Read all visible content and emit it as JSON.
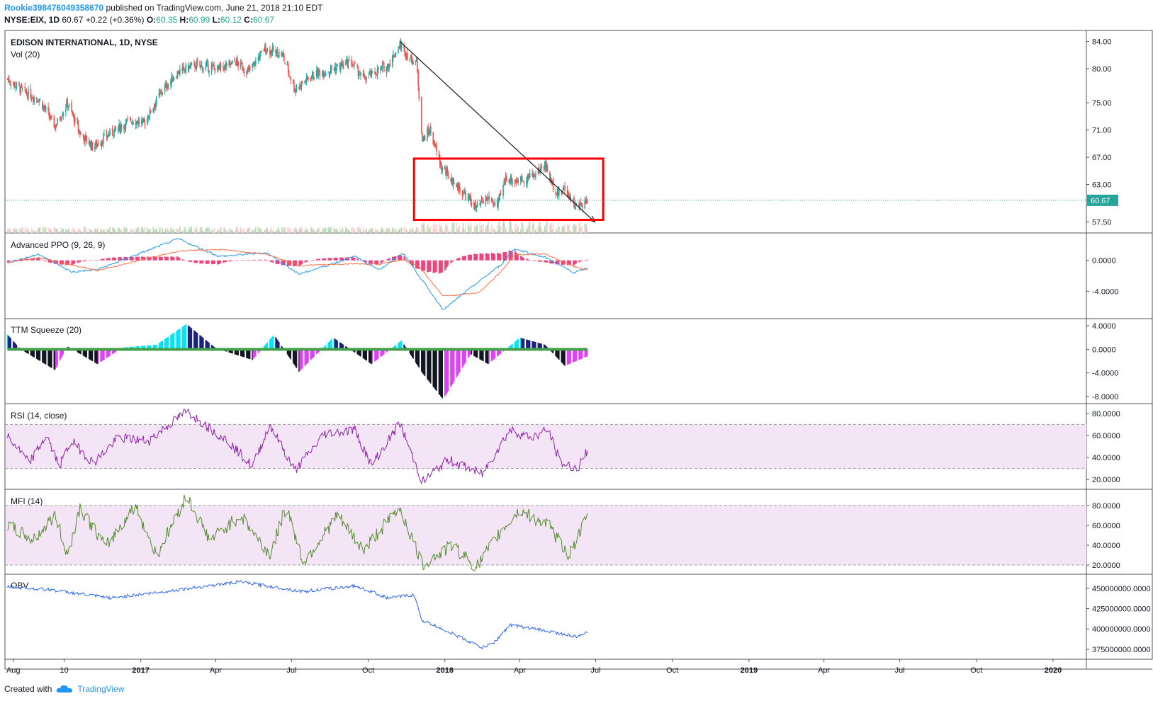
{
  "header": {
    "author": "Rookie398476049358670",
    "published": "published on TradingView.com, June 21, 2018 21:10 EDT",
    "symbol_line": {
      "symbol": "NYSE:EIX, 1D",
      "last": "60.67",
      "change": "+0.22 (+0.36%)",
      "o_label": "O:",
      "o": "60.35",
      "h_label": "H:",
      "h": "60.99",
      "l_label": "L:",
      "l": "60.12",
      "c_label": "C:",
      "c": "60.67"
    }
  },
  "footer": {
    "created_with": "Created with",
    "brand": "TradingView"
  },
  "colors": {
    "up": "#26a69a",
    "down": "#ef5350",
    "accent": "#2196f3",
    "box": "#ff0000",
    "rsi": "#8e24aa",
    "mfi": "#558b2f",
    "obv": "#2962ff",
    "band": "#f3e5f5"
  },
  "chart_data": [
    {
      "type": "candlestick",
      "title": "EDISON INTERNATIONAL, 1D, NYSE",
      "subtitle": "Vol (20)",
      "y_ticks": [
        "84.00",
        "80.00",
        "75.00",
        "71.00",
        "67.00",
        "63.00",
        "57.50"
      ],
      "last_price_label": "60.67",
      "last_price": 60.67,
      "ylim": [
        56.5,
        85
      ],
      "price_anchors": [
        {
          "date": "2016-07-25",
          "price": 78.5
        },
        {
          "date": "2016-08-15",
          "price": 76.5
        },
        {
          "date": "2016-09-01",
          "price": 75.5
        },
        {
          "date": "2016-09-20",
          "price": 71.5
        },
        {
          "date": "2016-10-05",
          "price": 75.0
        },
        {
          "date": "2016-10-20",
          "price": 70.5
        },
        {
          "date": "2016-11-05",
          "price": 68.5
        },
        {
          "date": "2016-11-25",
          "price": 70.5
        },
        {
          "date": "2016-12-20",
          "price": 72.5
        },
        {
          "date": "2017-01-05",
          "price": 72.0
        },
        {
          "date": "2017-01-25",
          "price": 76.5
        },
        {
          "date": "2017-02-15",
          "price": 79.5
        },
        {
          "date": "2017-03-05",
          "price": 80.5
        },
        {
          "date": "2017-04-05",
          "price": 80.0
        },
        {
          "date": "2017-04-25",
          "price": 81.0
        },
        {
          "date": "2017-05-10",
          "price": 79.5
        },
        {
          "date": "2017-05-30",
          "price": 83.0
        },
        {
          "date": "2017-06-20",
          "price": 82.0
        },
        {
          "date": "2017-07-05",
          "price": 77.0
        },
        {
          "date": "2017-07-25",
          "price": 79.0
        },
        {
          "date": "2017-08-20",
          "price": 80.0
        },
        {
          "date": "2017-09-10",
          "price": 81.0
        },
        {
          "date": "2017-09-25",
          "price": 78.5
        },
        {
          "date": "2017-10-10",
          "price": 79.5
        },
        {
          "date": "2017-10-25",
          "price": 80.5
        },
        {
          "date": "2017-11-08",
          "price": 83.5
        },
        {
          "date": "2017-11-20",
          "price": 81.5
        },
        {
          "date": "2017-11-28",
          "price": 81.0
        },
        {
          "date": "2017-12-05",
          "price": 69.5
        },
        {
          "date": "2017-12-14",
          "price": 71.0
        },
        {
          "date": "2017-12-20",
          "price": 68.5
        },
        {
          "date": "2017-12-28",
          "price": 65.5
        },
        {
          "date": "2018-01-10",
          "price": 63.5
        },
        {
          "date": "2018-01-25",
          "price": 61.5
        },
        {
          "date": "2018-02-08",
          "price": 59.5
        },
        {
          "date": "2018-02-22",
          "price": 61.0
        },
        {
          "date": "2018-03-05",
          "price": 59.8
        },
        {
          "date": "2018-03-15",
          "price": 64.0
        },
        {
          "date": "2018-03-28",
          "price": 63.5
        },
        {
          "date": "2018-04-10",
          "price": 64.0
        },
        {
          "date": "2018-04-20",
          "price": 64.5
        },
        {
          "date": "2018-05-01",
          "price": 66.0
        },
        {
          "date": "2018-05-10",
          "price": 63.0
        },
        {
          "date": "2018-05-18",
          "price": 61.5
        },
        {
          "date": "2018-05-25",
          "price": 62.5
        },
        {
          "date": "2018-06-08",
          "price": 59.5
        },
        {
          "date": "2018-06-21",
          "price": 60.67
        }
      ],
      "trendline": {
        "from": {
          "date": "2017-11-08",
          "price": 84.0
        },
        "to": {
          "date": "2018-06-30",
          "price": 57.5
        }
      },
      "highlight_box": {
        "from": "2017-11-25",
        "to": "2018-07-10",
        "price_high": 66.8,
        "price_low": 57.8
      }
    },
    {
      "type": "line",
      "title": "Advanced PPO (9, 26, 9)",
      "y_ticks": [
        "0.0000",
        "-4.0000"
      ],
      "ylim": [
        -7,
        3
      ],
      "anchors": [
        {
          "date": "2016-07-25",
          "value": -0.3
        },
        {
          "date": "2016-09-01",
          "value": 0.8
        },
        {
          "date": "2016-10-10",
          "value": -1.5
        },
        {
          "date": "2016-11-10",
          "value": -1.2
        },
        {
          "date": "2017-02-15",
          "value": 2.8
        },
        {
          "date": "2017-04-05",
          "value": 0.5
        },
        {
          "date": "2017-06-01",
          "value": 1.0
        },
        {
          "date": "2017-07-10",
          "value": -1.8
        },
        {
          "date": "2017-09-15",
          "value": 0.5
        },
        {
          "date": "2017-10-15",
          "value": -1.2
        },
        {
          "date": "2017-11-12",
          "value": 1.0
        },
        {
          "date": "2017-12-01",
          "value": -2.0
        },
        {
          "date": "2017-12-30",
          "value": -6.4
        },
        {
          "date": "2018-02-10",
          "value": -2.8
        },
        {
          "date": "2018-03-10",
          "value": -0.5
        },
        {
          "date": "2018-03-25",
          "value": 1.5
        },
        {
          "date": "2018-05-01",
          "value": 0.4
        },
        {
          "date": "2018-06-05",
          "value": -1.6
        },
        {
          "date": "2018-06-21",
          "value": -1.0
        }
      ]
    },
    {
      "type": "bar",
      "title": "TTM Squeeze (20)",
      "y_ticks": [
        "4.0000",
        "0.0000",
        "-4.0000",
        "-8.0000"
      ],
      "ylim": [
        -8.5,
        4.5
      ],
      "anchors": [
        {
          "date": "2016-07-25",
          "value": 2.5
        },
        {
          "date": "2016-08-10",
          "value": 0.0
        },
        {
          "date": "2016-09-20",
          "value": -3.5
        },
        {
          "date": "2016-10-05",
          "value": 0.5
        },
        {
          "date": "2016-11-10",
          "value": -2.5
        },
        {
          "date": "2016-12-10",
          "value": 0.3
        },
        {
          "date": "2017-01-20",
          "value": 0.8
        },
        {
          "date": "2017-02-25",
          "value": 4.3
        },
        {
          "date": "2017-04-01",
          "value": 0.2
        },
        {
          "date": "2017-05-15",
          "value": -1.8
        },
        {
          "date": "2017-06-10",
          "value": 2.5
        },
        {
          "date": "2017-07-10",
          "value": -3.8
        },
        {
          "date": "2017-08-20",
          "value": 2.0
        },
        {
          "date": "2017-10-05",
          "value": -2.5
        },
        {
          "date": "2017-11-10",
          "value": 1.5
        },
        {
          "date": "2017-12-05",
          "value": -4.0
        },
        {
          "date": "2017-12-30",
          "value": -8.5
        },
        {
          "date": "2018-02-01",
          "value": -0.8
        },
        {
          "date": "2018-02-22",
          "value": -2.5
        },
        {
          "date": "2018-04-01",
          "value": 2.0
        },
        {
          "date": "2018-05-01",
          "value": 0.8
        },
        {
          "date": "2018-05-25",
          "value": -2.8
        },
        {
          "date": "2018-06-21",
          "value": -1.2
        }
      ]
    },
    {
      "type": "line",
      "title": "RSI (14, close)",
      "y_ticks": [
        "80.0000",
        "60.0000",
        "40.0000",
        "20.0000"
      ],
      "ylim": [
        15,
        85
      ],
      "band": [
        30,
        70
      ],
      "anchors": [
        {
          "date": "2016-07-25",
          "value": 60
        },
        {
          "date": "2016-08-20",
          "value": 35
        },
        {
          "date": "2016-09-10",
          "value": 60
        },
        {
          "date": "2016-09-25",
          "value": 32
        },
        {
          "date": "2016-10-10",
          "value": 55
        },
        {
          "date": "2016-11-05",
          "value": 35
        },
        {
          "date": "2016-12-05",
          "value": 58
        },
        {
          "date": "2017-01-10",
          "value": 55
        },
        {
          "date": "2017-02-25",
          "value": 82
        },
        {
          "date": "2017-04-15",
          "value": 55
        },
        {
          "date": "2017-05-15",
          "value": 32
        },
        {
          "date": "2017-06-05",
          "value": 70
        },
        {
          "date": "2017-07-05",
          "value": 28
        },
        {
          "date": "2017-08-10",
          "value": 62
        },
        {
          "date": "2017-09-15",
          "value": 65
        },
        {
          "date": "2017-10-05",
          "value": 33
        },
        {
          "date": "2017-11-08",
          "value": 71
        },
        {
          "date": "2017-12-05",
          "value": 18
        },
        {
          "date": "2018-01-05",
          "value": 38
        },
        {
          "date": "2018-02-15",
          "value": 25
        },
        {
          "date": "2018-03-20",
          "value": 65
        },
        {
          "date": "2018-04-15",
          "value": 58
        },
        {
          "date": "2018-05-05",
          "value": 65
        },
        {
          "date": "2018-05-20",
          "value": 35
        },
        {
          "date": "2018-06-10",
          "value": 30
        },
        {
          "date": "2018-06-21",
          "value": 47
        }
      ]
    },
    {
      "type": "line",
      "title": "MFI (14)",
      "y_ticks": [
        "80.0000",
        "60.0000",
        "40.0000",
        "20.0000"
      ],
      "ylim": [
        15,
        92
      ],
      "band": [
        20,
        80
      ],
      "anchors": [
        {
          "date": "2016-07-25",
          "value": 60
        },
        {
          "date": "2016-08-25",
          "value": 45
        },
        {
          "date": "2016-09-20",
          "value": 70
        },
        {
          "date": "2016-10-05",
          "value": 30
        },
        {
          "date": "2016-10-20",
          "value": 78
        },
        {
          "date": "2016-11-20",
          "value": 38
        },
        {
          "date": "2016-12-25",
          "value": 80
        },
        {
          "date": "2017-01-20",
          "value": 30
        },
        {
          "date": "2017-02-25",
          "value": 90
        },
        {
          "date": "2017-03-25",
          "value": 45
        },
        {
          "date": "2017-05-01",
          "value": 70
        },
        {
          "date": "2017-06-05",
          "value": 30
        },
        {
          "date": "2017-06-25",
          "value": 80
        },
        {
          "date": "2017-07-15",
          "value": 22
        },
        {
          "date": "2017-08-25",
          "value": 70
        },
        {
          "date": "2017-09-25",
          "value": 35
        },
        {
          "date": "2017-11-08",
          "value": 78
        },
        {
          "date": "2017-12-05",
          "value": 20
        },
        {
          "date": "2018-01-10",
          "value": 40
        },
        {
          "date": "2018-02-08",
          "value": 18
        },
        {
          "date": "2018-03-10",
          "value": 55
        },
        {
          "date": "2018-04-01",
          "value": 75
        },
        {
          "date": "2018-05-05",
          "value": 60
        },
        {
          "date": "2018-05-30",
          "value": 30
        },
        {
          "date": "2018-06-21",
          "value": 68
        }
      ]
    },
    {
      "type": "line",
      "title": "OBV",
      "y_ticks": [
        "450000000.0000",
        "425000000.0000",
        "400000000.0000",
        "375000000.0000"
      ],
      "ylim": [
        368000000,
        462000000
      ],
      "anchors": [
        {
          "date": "2016-07-25",
          "value": 452000000
        },
        {
          "date": "2016-09-15",
          "value": 448000000
        },
        {
          "date": "2016-11-25",
          "value": 438000000
        },
        {
          "date": "2017-01-30",
          "value": 446000000
        },
        {
          "date": "2017-04-30",
          "value": 458000000
        },
        {
          "date": "2017-07-15",
          "value": 446000000
        },
        {
          "date": "2017-09-15",
          "value": 453000000
        },
        {
          "date": "2017-10-25",
          "value": 438000000
        },
        {
          "date": "2017-11-25",
          "value": 442000000
        },
        {
          "date": "2017-12-05",
          "value": 410000000
        },
        {
          "date": "2017-12-25",
          "value": 402000000
        },
        {
          "date": "2018-02-15",
          "value": 377000000
        },
        {
          "date": "2018-03-01",
          "value": 383000000
        },
        {
          "date": "2018-03-20",
          "value": 405000000
        },
        {
          "date": "2018-05-01",
          "value": 398000000
        },
        {
          "date": "2018-06-10",
          "value": 390000000
        },
        {
          "date": "2018-06-21",
          "value": 397000000
        }
      ]
    },
    {
      "type": "axis",
      "x_ticks": [
        {
          "date": "2016-08-01",
          "label": "Aug",
          "bold": false
        },
        {
          "date": "2016-10-01",
          "label": "10",
          "bold": false
        },
        {
          "date": "2017-01-01",
          "label": "2017",
          "bold": true
        },
        {
          "date": "2017-04-01",
          "label": "Apr",
          "bold": false
        },
        {
          "date": "2017-07-01",
          "label": "Jul",
          "bold": false
        },
        {
          "date": "2017-10-01",
          "label": "Oct",
          "bold": false
        },
        {
          "date": "2018-01-01",
          "label": "2018",
          "bold": true
        },
        {
          "date": "2018-04-01",
          "label": "Apr",
          "bold": false
        },
        {
          "date": "2018-07-01",
          "label": "Jul",
          "bold": false
        },
        {
          "date": "2018-10-01",
          "label": "Oct",
          "bold": false
        },
        {
          "date": "2019-01-01",
          "label": "2019",
          "bold": true
        },
        {
          "date": "2019-04-01",
          "label": "Apr",
          "bold": false
        },
        {
          "date": "2019-07-01",
          "label": "Jul",
          "bold": false
        },
        {
          "date": "2019-10-01",
          "label": "Oct",
          "bold": false
        },
        {
          "date": "2020-01-01",
          "label": "2020",
          "bold": true
        }
      ],
      "x_range": [
        "2016-07-22",
        "2020-02-10"
      ]
    }
  ]
}
